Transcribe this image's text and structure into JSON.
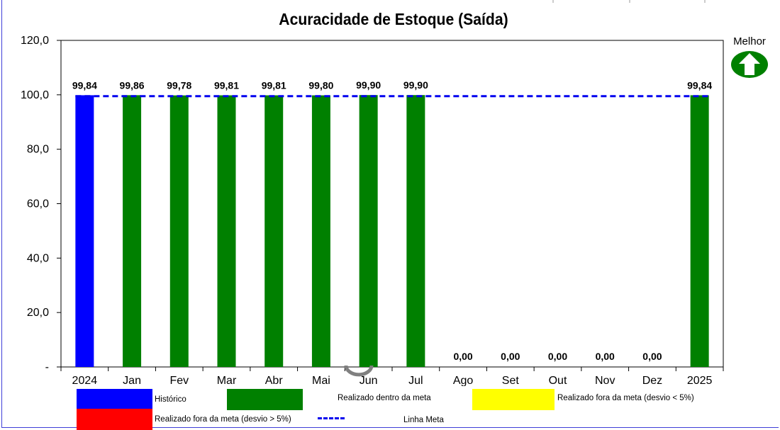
{
  "title": "Acuracidade de Estoque (Saída)",
  "better_indicator": {
    "label": "Melhor",
    "icon": "up-arrow-icon",
    "color": "#008000"
  },
  "colors": {
    "historico": "#0000ff",
    "dentro_meta": "#008000",
    "fora_meta_menor": "#ffff00",
    "fora_meta_maior": "#ff0000",
    "linha_meta": "#0000ee"
  },
  "chart_data": {
    "type": "bar",
    "title": "Acuracidade de Estoque (Saída)",
    "categories": [
      "2024",
      "Jan",
      "Fev",
      "Mar",
      "Abr",
      "Mai",
      "Jun",
      "Jul",
      "Ago",
      "Set",
      "Out",
      "Nov",
      "Dez",
      "2025"
    ],
    "values": [
      99.84,
      99.86,
      99.78,
      99.81,
      99.81,
      99.8,
      99.9,
      99.9,
      0,
      0,
      0,
      0,
      0,
      99.84
    ],
    "value_labels": [
      "99,84",
      "99,86",
      "99,78",
      "99,81",
      "99,81",
      "99,80",
      "99,90",
      "99,90",
      "0,00",
      "0,00",
      "0,00",
      "0,00",
      "0,00",
      "99,84"
    ],
    "bar_status": [
      "historico",
      "dentro_meta",
      "dentro_meta",
      "dentro_meta",
      "dentro_meta",
      "dentro_meta",
      "dentro_meta",
      "dentro_meta",
      "dentro_meta",
      "dentro_meta",
      "dentro_meta",
      "dentro_meta",
      "dentro_meta",
      "dentro_meta"
    ],
    "target_line": 99.5,
    "ylim": [
      0,
      120
    ],
    "y_ticks": [
      0,
      20,
      40,
      60,
      80,
      100,
      120
    ],
    "y_tick_labels": [
      "-",
      "20,0",
      "40,0",
      "60,0",
      "80,0",
      "100,0",
      "120,0"
    ],
    "grid": false,
    "legend_position": "bottom"
  },
  "legend": [
    {
      "label": "Histórico",
      "color_key": "historico",
      "kind": "swatch"
    },
    {
      "label": "Realizado dentro da meta",
      "color_key": "dentro_meta",
      "kind": "swatch"
    },
    {
      "label": "Realizado fora da meta (desvio < 5%)",
      "color_key": "fora_meta_menor",
      "kind": "swatch"
    },
    {
      "label": "Realizado fora da meta (desvio > 5%)",
      "color_key": "fora_meta_maior",
      "kind": "swatch"
    },
    {
      "label": "Linha Meta",
      "color_key": "linha_meta",
      "kind": "line"
    }
  ]
}
